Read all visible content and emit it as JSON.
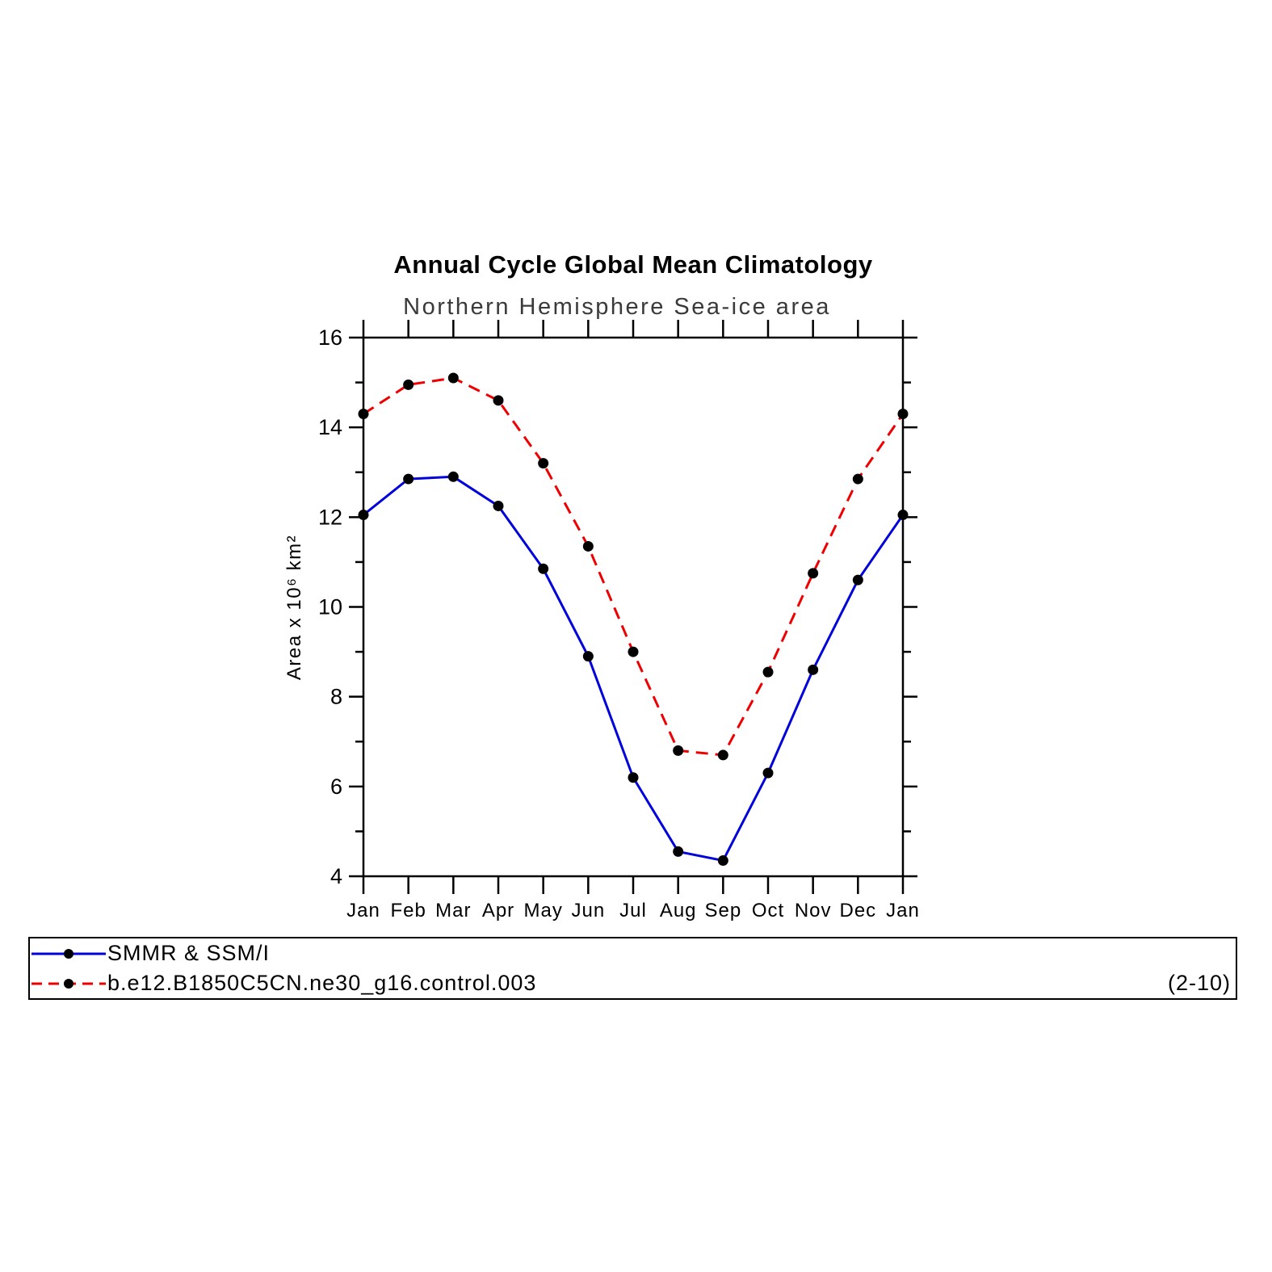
{
  "title": "Annual Cycle Global Mean Climatology",
  "subtitle": "Northern Hemisphere Sea-ice area",
  "chart_data": {
    "type": "line",
    "title": "Annual Cycle Global Mean Climatology",
    "subtitle": "Northern Hemisphere Sea-ice area",
    "ylabel": "Area x 10⁶ km²",
    "xlabel": "",
    "categories": [
      "Jan",
      "Feb",
      "Mar",
      "Apr",
      "May",
      "Jun",
      "Jul",
      "Aug",
      "Sep",
      "Oct",
      "Nov",
      "Dec",
      "Jan"
    ],
    "series": [
      {
        "name": "SMMR & SSM/I",
        "color": "#0000dd",
        "style": "solid",
        "values": [
          12.05,
          12.85,
          12.9,
          12.25,
          10.85,
          8.9,
          6.2,
          4.55,
          4.35,
          6.3,
          8.6,
          10.6,
          12.05
        ]
      },
      {
        "name": "b.e12.B1850C5CN.ne30_g16.control.003",
        "color": "#ee0000",
        "style": "dashed",
        "values": [
          14.3,
          14.95,
          15.1,
          14.6,
          13.2,
          11.35,
          9.0,
          6.8,
          6.7,
          8.55,
          10.75,
          12.85,
          14.3
        ]
      }
    ],
    "marker_color": "#000000",
    "ylim": [
      4,
      16
    ],
    "yticks": [
      4,
      6,
      8,
      10,
      12,
      14,
      16
    ],
    "yticks_minor": [
      5,
      7,
      9,
      11,
      13,
      15
    ],
    "grid": "off",
    "legend_position": "bottom",
    "legend_note": "(2-10)"
  }
}
